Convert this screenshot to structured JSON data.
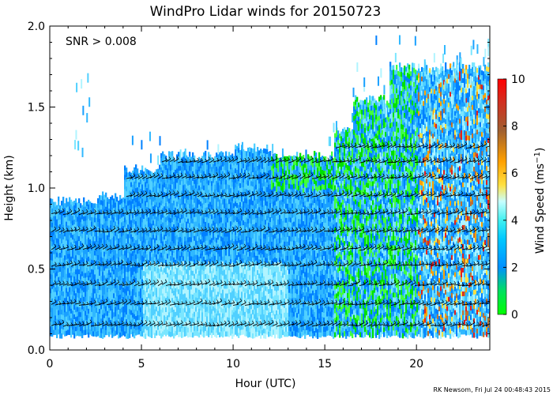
{
  "chart_data": {
    "type": "heatmap",
    "title": "WindPro Lidar winds for 20150723",
    "annotation": "SNR > 0.008",
    "xlabel": "Hour (UTC)",
    "ylabel": "Height (km)",
    "xlim": [
      0,
      24
    ],
    "ylim": [
      0.0,
      2.0
    ],
    "xticks": [
      0,
      5,
      10,
      15,
      20
    ],
    "yticks": [
      0.0,
      0.5,
      1.0,
      1.5,
      2.0
    ],
    "ytick_labels": [
      "0.0",
      "0.5",
      "1.0",
      "1.5",
      "2.0"
    ],
    "colorbar": {
      "label": "Wind Speed (ms",
      "label_sup": "−1",
      "label_end": ")",
      "range": [
        0,
        10
      ],
      "ticks": [
        0,
        2,
        4,
        6,
        8,
        10
      ]
    },
    "wind_barb_heights_km": [
      0.15,
      0.28,
      0.4,
      0.52,
      0.62,
      0.73,
      0.84,
      0.95,
      1.06,
      1.16,
      1.25
    ]
  },
  "footer": "RK Newsom, Fri Jul 24 00:48:43 2015"
}
